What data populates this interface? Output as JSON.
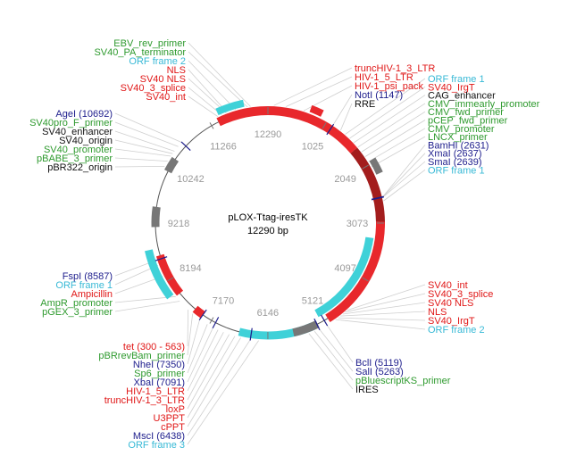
{
  "map": {
    "name": "pLOX-Ttag-iresTK",
    "length_label": "12290 bp",
    "total_bp": 12290
  },
  "colors": {
    "backbone": "#555555",
    "red": "#e8282c",
    "dark_red": "#a31d1d",
    "cyan": "#3fd1d8",
    "gray": "#777777",
    "green": "#2e9a2e",
    "navy": "#1d1d8c",
    "crimson": "#e01717",
    "black": "#111111",
    "sky": "#38b9d6"
  },
  "ticks": [
    {
      "label": "12290",
      "bp": 0
    },
    {
      "label": "1025",
      "bp": 1025
    },
    {
      "label": "2049",
      "bp": 2049
    },
    {
      "label": "3073",
      "bp": 3073
    },
    {
      "label": "4097",
      "bp": 4097
    },
    {
      "label": "5121",
      "bp": 5121
    },
    {
      "label": "6146",
      "bp": 6146
    },
    {
      "label": "7170",
      "bp": 7170
    },
    {
      "label": "8194",
      "bp": 8194
    },
    {
      "label": "9218",
      "bp": 9218
    },
    {
      "label": "10242",
      "bp": 10242
    },
    {
      "label": "11266",
      "bp": 11266
    }
  ],
  "features": [
    {
      "name": "seg-red-top",
      "start": 11400,
      "end": 1700,
      "color": "red",
      "ring": 0,
      "width": 10
    },
    {
      "name": "seg-darkred-right",
      "start": 1700,
      "end": 3050,
      "color": "dark_red",
      "ring": 0,
      "width": 10
    },
    {
      "name": "seg-red-right",
      "start": 3050,
      "end": 5050,
      "color": "red",
      "ring": 0,
      "width": 10
    },
    {
      "name": "seg-cyan-right",
      "start": 3350,
      "end": 5180,
      "color": "cyan",
      "ring": -1,
      "width": 9
    },
    {
      "name": "seg-cyan-bottom",
      "start": 5330,
      "end": 6650,
      "color": "cyan",
      "ring": 0,
      "width": 9
    },
    {
      "name": "seg-gray-bottom",
      "start": 5250,
      "end": 5700,
      "color": "gray",
      "ring": 0,
      "width": 9
    },
    {
      "name": "seg-red-lower-left",
      "start": 7350,
      "end": 7520,
      "color": "red",
      "ring": 0,
      "width": 9
    },
    {
      "name": "seg-red-left",
      "start": 7900,
      "end": 8650,
      "color": "red",
      "ring": 0,
      "width": 9
    },
    {
      "name": "seg-cyan-left",
      "start": 7950,
      "end": 8780,
      "color": "cyan",
      "ring": 1,
      "width": 9
    },
    {
      "name": "seg-gray-left",
      "start": 9150,
      "end": 9500,
      "color": "gray",
      "ring": 0,
      "width": 9
    },
    {
      "name": "seg-gray-upper-left",
      "start": 10150,
      "end": 10400,
      "color": "gray",
      "ring": 0,
      "width": 9
    },
    {
      "name": "seg-cyan-top",
      "start": 11450,
      "end": 11900,
      "color": "cyan",
      "ring": 1,
      "width": 8
    },
    {
      "name": "seg-red-top-inner",
      "start": 700,
      "end": 900,
      "color": "red",
      "ring": 1,
      "width": 8
    },
    {
      "name": "seg-gray-right",
      "start": 2000,
      "end": 2250,
      "color": "gray",
      "ring": 1,
      "width": 8
    }
  ],
  "labels_left": [
    {
      "text": "EBV_rev_primer",
      "color": "green",
      "bp": 12000
    },
    {
      "text": "SV40_PA_terminator",
      "color": "green",
      "bp": 11950
    },
    {
      "text": "ORF frame 2",
      "color": "sky",
      "bp": 11750
    },
    {
      "text": "NLS",
      "color": "crimson",
      "bp": 11600
    },
    {
      "text": "SV40 NLS",
      "color": "crimson",
      "bp": 11580
    },
    {
      "text": "SV40_3_splice",
      "color": "crimson",
      "bp": 11500
    },
    {
      "text": "SV40_int",
      "color": "crimson",
      "bp": 11430
    },
    {
      "text": "AgeI (10692)",
      "color": "navy",
      "bp": 10692
    },
    {
      "text": "SV40pro_F_primer",
      "color": "green",
      "bp": 10600
    },
    {
      "text": "SV40_enhancer",
      "color": "black",
      "bp": 10500
    },
    {
      "text": "SV40_origin",
      "color": "black",
      "bp": 10450
    },
    {
      "text": "SV40_promoter",
      "color": "green",
      "bp": 10400
    },
    {
      "text": "pBABE_3_primer",
      "color": "green",
      "bp": 10300
    },
    {
      "text": "pBR322_origin",
      "color": "black",
      "bp": 10200
    },
    {
      "text": "FspI (8587)",
      "color": "navy",
      "bp": 8587
    },
    {
      "text": "ORF frame 1",
      "color": "sky",
      "bp": 8500
    },
    {
      "text": "Ampicillin",
      "color": "crimson",
      "bp": 8300
    },
    {
      "text": "AmpR_promoter",
      "color": "green",
      "bp": 7900
    },
    {
      "text": "pGEX_3_primer",
      "color": "green",
      "bp": 7800
    },
    {
      "text": "tet (300 - 563)",
      "color": "crimson",
      "bp": 7600
    },
    {
      "text": "pBRrevBam_primer",
      "color": "green",
      "bp": 7500
    },
    {
      "text": "NheI (7350)",
      "color": "navy",
      "bp": 7350
    },
    {
      "text": "Sp6_primer",
      "color": "green",
      "bp": 7200
    },
    {
      "text": "XbaI (7091)",
      "color": "navy",
      "bp": 7091
    },
    {
      "text": "HIV-1_5_LTR",
      "color": "crimson",
      "bp": 7000
    },
    {
      "text": "truncHIV-1_3_LTR",
      "color": "crimson",
      "bp": 6900
    },
    {
      "text": "loxP",
      "color": "crimson",
      "bp": 6800
    },
    {
      "text": "U3PPT",
      "color": "crimson",
      "bp": 6700
    },
    {
      "text": "cPPT",
      "color": "crimson",
      "bp": 6600
    },
    {
      "text": "MscI (6438)",
      "color": "navy",
      "bp": 6438
    },
    {
      "text": "ORF frame 3",
      "color": "sky",
      "bp": 6300
    }
  ],
  "labels_right": [
    {
      "text": "truncHIV-1_3_LTR",
      "color": "crimson",
      "bp": 100
    },
    {
      "text": "HIV-1_5_LTR",
      "color": "crimson",
      "bp": 300
    },
    {
      "text": "HIV-1_psi_pack",
      "color": "crimson",
      "bp": 600
    },
    {
      "text": "NotI (1147)",
      "color": "navy",
      "bp": 1147
    },
    {
      "text": "RRE",
      "color": "black",
      "bp": 1300
    },
    {
      "text": "ORF frame 1",
      "color": "sky",
      "bp": 1400
    },
    {
      "text": "SV40_IrgT",
      "color": "crimson",
      "bp": 1500
    },
    {
      "text": "CAG_enhancer",
      "color": "black",
      "bp": 1600
    },
    {
      "text": "CMV_immearly_promoter",
      "color": "green",
      "bp": 1700
    },
    {
      "text": "CMV_fwd_primer",
      "color": "green",
      "bp": 1800
    },
    {
      "text": "pCEP_fwd_primer",
      "color": "green",
      "bp": 1900
    },
    {
      "text": "CMV_promoter",
      "color": "green",
      "bp": 2000
    },
    {
      "text": "LNCX_primer",
      "color": "green",
      "bp": 2100
    },
    {
      "text": "BamHI (2631)",
      "color": "navy",
      "bp": 2631
    },
    {
      "text": "XmaI (2637)",
      "color": "navy",
      "bp": 2637
    },
    {
      "text": "SmaI (2639)",
      "color": "navy",
      "bp": 2639
    },
    {
      "text": "ORF frame 1",
      "color": "sky",
      "bp": 2700
    },
    {
      "text": "SV40_int",
      "color": "crimson",
      "bp": 4700
    },
    {
      "text": "SV40_3_splice",
      "color": "crimson",
      "bp": 4750
    },
    {
      "text": "SV40 NLS",
      "color": "crimson",
      "bp": 4800
    },
    {
      "text": "NLS",
      "color": "crimson",
      "bp": 4850
    },
    {
      "text": "SV40_IrgT",
      "color": "crimson",
      "bp": 4900
    },
    {
      "text": "ORF frame 2",
      "color": "sky",
      "bp": 4950
    },
    {
      "text": "BclI (5119)",
      "color": "navy",
      "bp": 5119
    },
    {
      "text": "SalI (5263)",
      "color": "navy",
      "bp": 5263
    },
    {
      "text": "pBluescriptKS_primer",
      "color": "green",
      "bp": 5350
    },
    {
      "text": "IRES",
      "color": "black",
      "bp": 5450
    }
  ]
}
